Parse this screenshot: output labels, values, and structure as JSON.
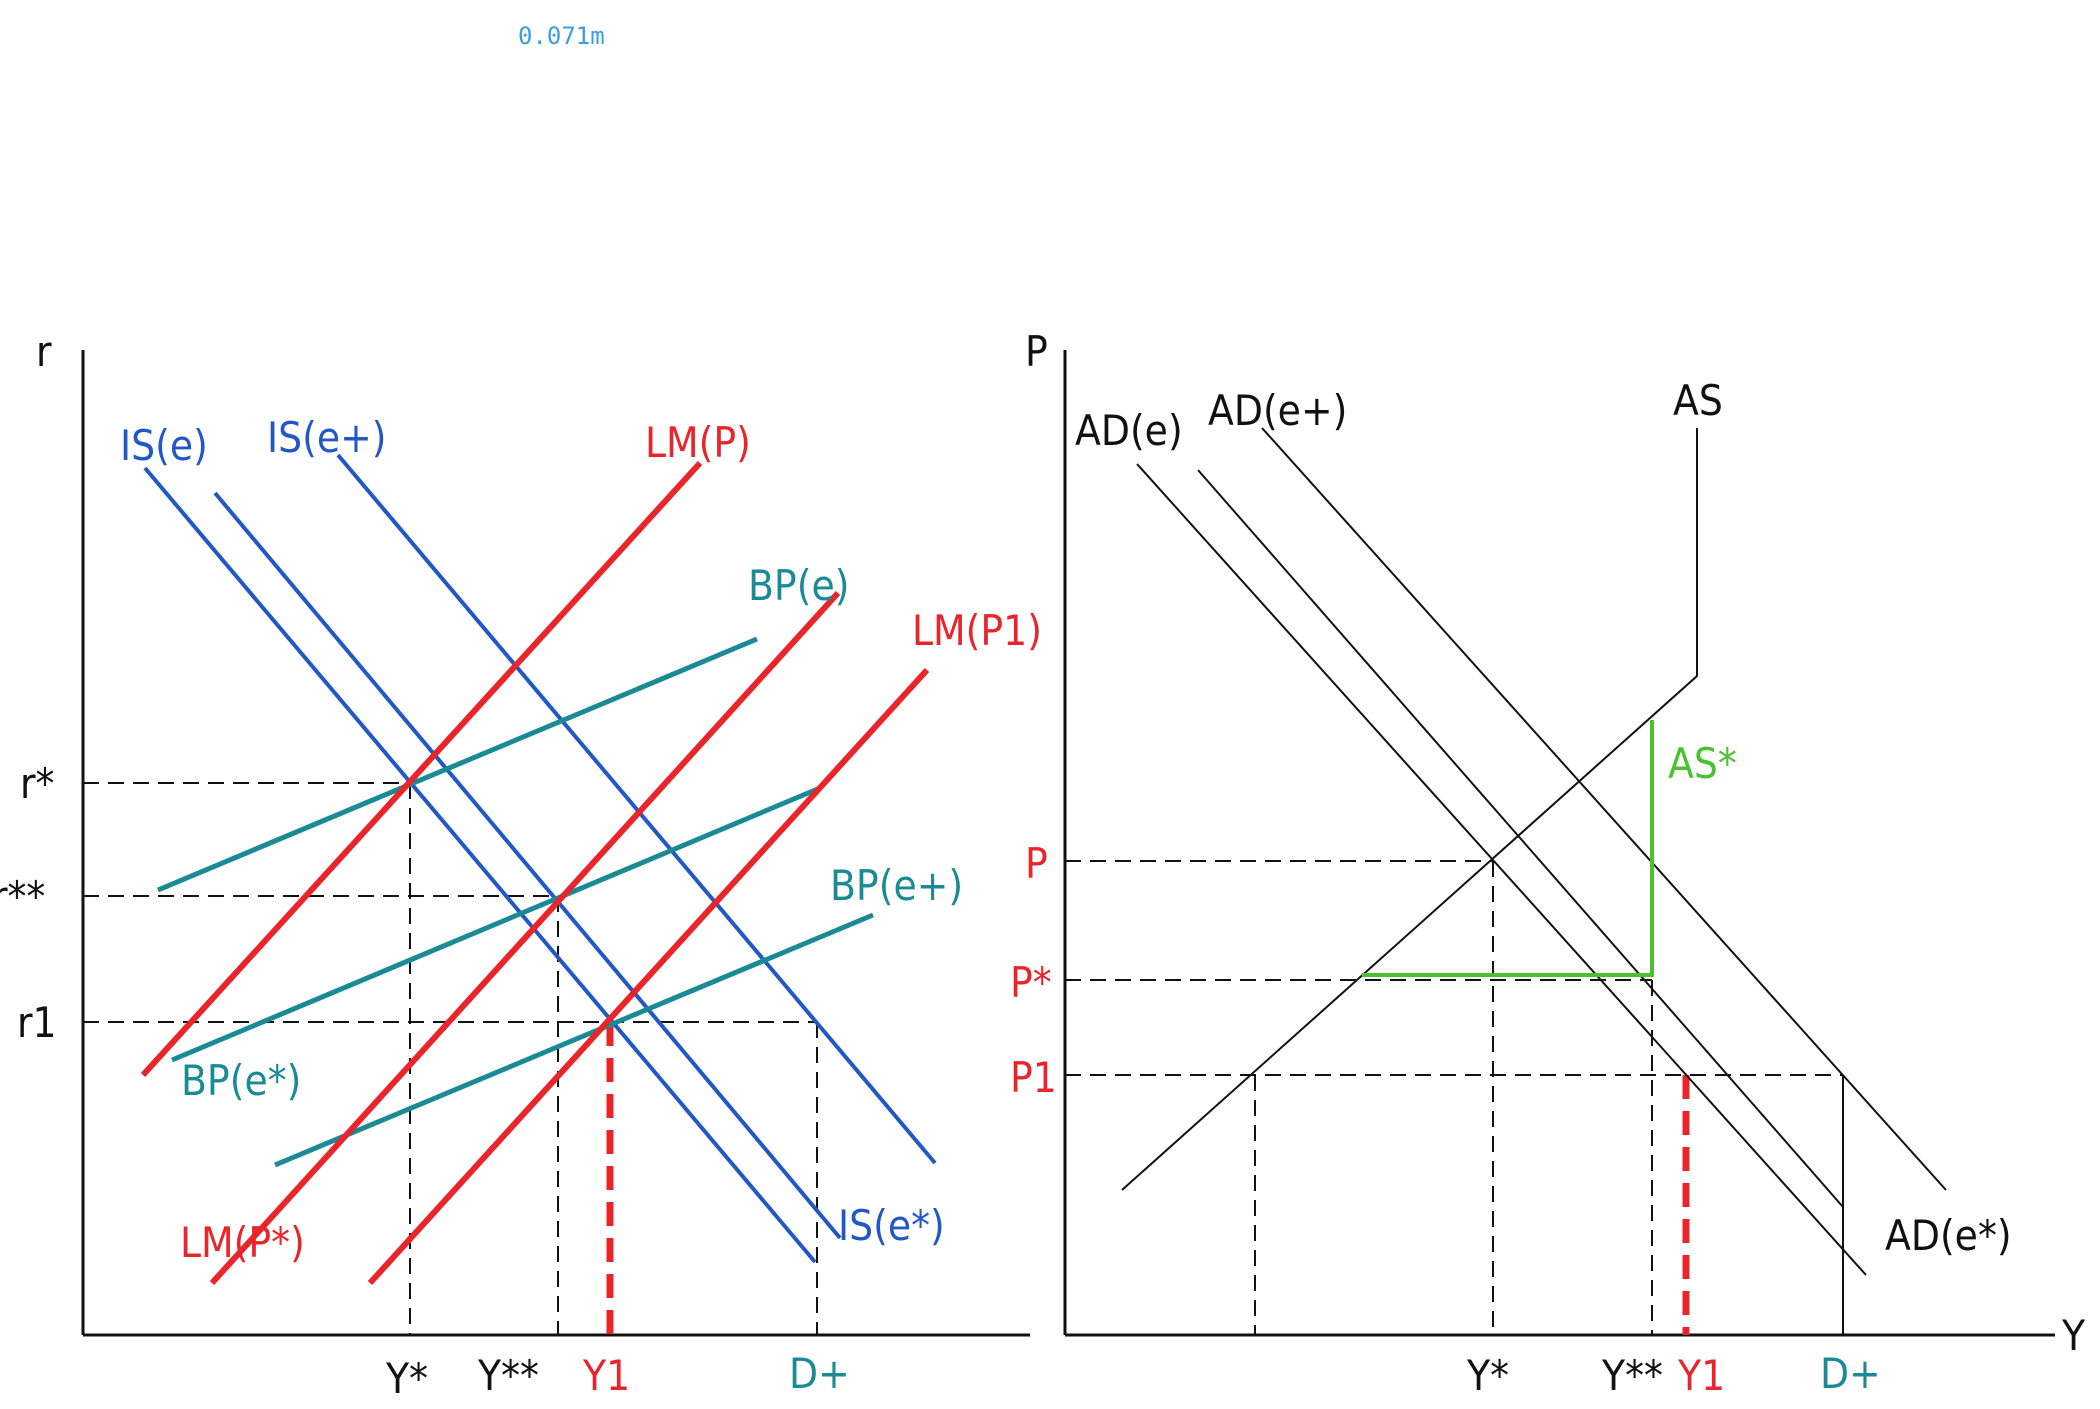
{
  "note": "0.071m",
  "colors": {
    "black": "#111111",
    "is": "#2158c6",
    "lm": "#e8252a",
    "bp": "#1a8a95",
    "as_star": "#4cc033",
    "note": "#3a9fe0"
  },
  "left_panel": {
    "y_axis": "r",
    "r_levels": [
      "r*",
      "r**",
      "r1"
    ],
    "y_levels": [
      "Y*",
      "Y**",
      "Y1",
      "D+"
    ],
    "curves": {
      "is_e": "IS(e)",
      "is_eplus": "IS(e+)",
      "is_estar": "IS(e*)",
      "lm_p": "LM(P)",
      "lm_p1": "LM(P1)",
      "lm_pstar": "LM(P*)",
      "bp_e": "BP(e)",
      "bp_eplus": "BP(e+)",
      "bp_estar": "BP(e*)"
    }
  },
  "right_panel": {
    "y_axis": "P",
    "x_axis": "Y",
    "p_levels": [
      "P",
      "P*",
      "P1"
    ],
    "y_levels": [
      "Y*",
      "Y**",
      "Y1",
      "D+"
    ],
    "curves": {
      "ad_e": "AD(e)",
      "ad_eplus": "AD(e+)",
      "ad_estar": "AD(e*)",
      "as": "AS",
      "as_star": "AS*"
    }
  }
}
